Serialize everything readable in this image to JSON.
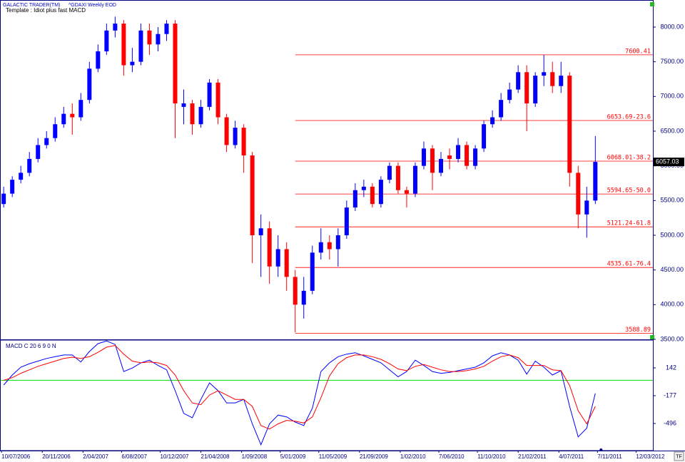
{
  "chart_data": {
    "type": "candlestick",
    "source": "GALACTIC TRADER(TM)",
    "title": "^GDAXI Weekly EOD",
    "subtitle": "Template : Idiot plus fast MACD",
    "corner_label": "TF",
    "up_color": "#0000ff",
    "down_color": "#ff0000",
    "xlim": [
      "2006-07-05",
      "2012-05-06"
    ],
    "xticks": [
      {
        "value": "2006-07-10",
        "label": "10/07/2006"
      },
      {
        "value": "2006-11-20",
        "label": "20/11/2006"
      },
      {
        "value": "2007-04-02",
        "label": "2/04/2007"
      },
      {
        "value": "2007-08-06",
        "label": "6/08/2007"
      },
      {
        "value": "2007-12-10",
        "label": "10/12/2007"
      },
      {
        "value": "2008-04-21",
        "label": "21/04/2008"
      },
      {
        "value": "2008-09-01",
        "label": "1/09/2008"
      },
      {
        "value": "2009-01-05",
        "label": "5/01/2009"
      },
      {
        "value": "2009-05-11",
        "label": "11/05/2009"
      },
      {
        "value": "2009-09-21",
        "label": "21/09/2009"
      },
      {
        "value": "2010-02-01",
        "label": "1/02/2010"
      },
      {
        "value": "2010-06-07",
        "label": "7/06/2010"
      },
      {
        "value": "2010-10-11",
        "label": "11/10/2010"
      },
      {
        "value": "2011-02-21",
        "label": "21/02/2011"
      },
      {
        "value": "2011-07-04",
        "label": "4/07/2011"
      },
      {
        "value": "2011-11-07",
        "label": "7/11/2011"
      },
      {
        "value": "2012-03-12",
        "label": "12/03/2012"
      }
    ],
    "ylim": [
      3500,
      8390
    ],
    "yticks": [
      {
        "value": 3500,
        "label": "3500.00"
      },
      {
        "value": 4000,
        "label": "4000.00"
      },
      {
        "value": 4500,
        "label": "4500.00"
      },
      {
        "value": 5000,
        "label": "5000.00"
      },
      {
        "value": 5500,
        "label": "5500.00"
      },
      {
        "value": 6000,
        "label": "6000.00"
      },
      {
        "value": 6500,
        "label": "6500.00"
      },
      {
        "value": 7000,
        "label": "7000.00"
      },
      {
        "value": 7500,
        "label": "7500.00"
      },
      {
        "value": 8000,
        "label": "8000.00"
      }
    ],
    "fib_color": "#ff0000",
    "fib_levels": [
      7600.41,
      {
        "value": 6653.69,
        "label": "6653.69-23.6"
      },
      {
        "value": 6068.01,
        "label": "6068.01-38.2"
      },
      {
        "value": 5594.65,
        "label": "5594.65-50.0"
      },
      {
        "value": 5121.24,
        "label": "5121.24-61.8"
      },
      {
        "value": 4535.61,
        "label": "4535.61-76.4"
      },
      3588.89
    ],
    "x": [
      "2006-07-17",
      "2006-08-14",
      "2006-09-11",
      "2006-10-09",
      "2006-11-06",
      "2006-12-04",
      "2007-01-01",
      "2007-01-29",
      "2007-02-26",
      "2007-03-26",
      "2007-04-23",
      "2007-05-21",
      "2007-06-18",
      "2007-07-16",
      "2007-08-13",
      "2007-09-10",
      "2007-10-08",
      "2007-11-05",
      "2007-12-03",
      "2007-12-31",
      "2008-01-28",
      "2008-02-25",
      "2008-03-24",
      "2008-04-21",
      "2008-05-19",
      "2008-06-16",
      "2008-07-14",
      "2008-08-11",
      "2008-09-08",
      "2008-10-06",
      "2008-11-03",
      "2008-12-01",
      "2008-12-29",
      "2009-01-26",
      "2009-02-23",
      "2009-03-23",
      "2009-04-20",
      "2009-05-18",
      "2009-06-15",
      "2009-07-13",
      "2009-08-10",
      "2009-09-07",
      "2009-10-05",
      "2009-11-02",
      "2009-11-30",
      "2009-12-28",
      "2010-01-25",
      "2010-02-22",
      "2010-03-22",
      "2010-04-19",
      "2010-05-17",
      "2010-06-14",
      "2010-07-12",
      "2010-08-09",
      "2010-09-06",
      "2010-10-04",
      "2010-11-01",
      "2010-11-29",
      "2010-12-27",
      "2011-01-24",
      "2011-02-21",
      "2011-03-21",
      "2011-04-18",
      "2011-05-16",
      "2011-06-13",
      "2011-07-11",
      "2011-08-08",
      "2011-09-05",
      "2011-10-03",
      "2011-10-31"
    ],
    "open": [
      5450,
      5600,
      5800,
      5900,
      6100,
      6300,
      6400,
      6600,
      6750,
      6700,
      6950,
      7400,
      7650,
      7950,
      8050,
      7450,
      7500,
      7950,
      7750,
      7900,
      8050,
      6850,
      6900,
      6600,
      6850,
      7200,
      6700,
      6300,
      6550,
      6150,
      5000,
      5100,
      4550,
      4800,
      4400,
      4000,
      4200,
      4750,
      4900,
      4800,
      5000,
      5400,
      5650,
      5700,
      5450,
      5800,
      6000,
      5650,
      5600,
      6000,
      6250,
      5900,
      6150,
      6100,
      6300,
      6000,
      6250,
      6600,
      6700,
      6950,
      7100,
      7350,
      6900,
      7300,
      7350,
      7150,
      7300,
      5900,
      5300,
      5500
    ],
    "high": [
      5700,
      5850,
      6000,
      6200,
      6400,
      6500,
      6700,
      6850,
      6900,
      7050,
      7500,
      7750,
      8050,
      8150,
      8100,
      7700,
      8050,
      8050,
      8000,
      8100,
      8100,
      7100,
      6950,
      6950,
      7250,
      7250,
      6750,
      6650,
      6600,
      6200,
      5300,
      5200,
      5000,
      4900,
      4500,
      4400,
      4850,
      5100,
      5000,
      5100,
      5500,
      5750,
      5800,
      5750,
      5850,
      6050,
      6050,
      5700,
      6050,
      6350,
      6300,
      6200,
      6250,
      6400,
      6350,
      6300,
      6650,
      6800,
      7050,
      7200,
      7450,
      7450,
      7350,
      7600,
      7500,
      7500,
      7350,
      6000,
      5700,
      6430
    ],
    "low": [
      5400,
      5550,
      5750,
      5850,
      6050,
      6250,
      6350,
      6550,
      6450,
      6650,
      6900,
      7350,
      7600,
      7850,
      7300,
      7350,
      7450,
      7600,
      7650,
      7800,
      6400,
      6600,
      6450,
      6550,
      6800,
      6600,
      6200,
      6250,
      5900,
      4600,
      4400,
      4300,
      4400,
      4200,
      3600,
      3800,
      4150,
      4650,
      4650,
      4550,
      4950,
      5350,
      5550,
      5400,
      5400,
      5750,
      5600,
      5400,
      5550,
      5950,
      5650,
      5850,
      5950,
      6050,
      5950,
      5950,
      6200,
      6550,
      6650,
      6900,
      7050,
      6500,
      6850,
      7150,
      7050,
      7050,
      5700,
      5100,
      4965,
      5450
    ],
    "close": [
      5600,
      5800,
      5900,
      6100,
      6300,
      6400,
      6600,
      6750,
      6700,
      6950,
      7400,
      7650,
      7950,
      8050,
      7450,
      7500,
      7950,
      7750,
      7900,
      8050,
      6900,
      6900,
      6600,
      6850,
      7200,
      6700,
      6300,
      6550,
      6150,
      5000,
      5100,
      4550,
      4800,
      4400,
      4000,
      4200,
      4750,
      4900,
      4800,
      5000,
      5400,
      5650,
      5700,
      5450,
      5800,
      6000,
      5650,
      5600,
      6000,
      6250,
      5900,
      6100,
      6100,
      6300,
      6000,
      6250,
      6600,
      6700,
      6950,
      7100,
      7350,
      6900,
      7300,
      7350,
      7150,
      7300,
      5900,
      5300,
      5500,
      6057.03
    ],
    "indicator": {
      "type": "line",
      "title": "MACD C 20 6 9 0 N",
      "ylim": [
        -807,
        461
      ],
      "yticks": [
        142,
        -177,
        -496
      ],
      "hline": 0,
      "hline_color": "#00dd00",
      "series": [
        {
          "color": "#0000ff",
          "values": [
            -54,
            60,
            150,
            190,
            220,
            250,
            270,
            290,
            290,
            210,
            330,
            420,
            450,
            410,
            100,
            140,
            200,
            230,
            170,
            120,
            -120,
            -380,
            -430,
            -220,
            -30,
            -120,
            -260,
            -260,
            -220,
            -500,
            -740,
            -500,
            -400,
            -420,
            -480,
            -520,
            -320,
            100,
            200,
            270,
            300,
            315,
            280,
            240,
            200,
            120,
            40,
            100,
            230,
            170,
            100,
            80,
            90,
            110,
            130,
            150,
            200,
            280,
            315,
            290,
            230,
            70,
            220,
            150,
            60,
            110,
            -300,
            -650,
            -550,
            -150
          ]
        },
        {
          "color": "#ff0000",
          "values": [
            0,
            30,
            80,
            120,
            160,
            190,
            220,
            250,
            265,
            250,
            270,
            320,
            380,
            400,
            300,
            220,
            200,
            210,
            200,
            170,
            60,
            -120,
            -260,
            -280,
            -170,
            -120,
            -170,
            -220,
            -220,
            -300,
            -520,
            -560,
            -500,
            -460,
            -470,
            -490,
            -420,
            -200,
            50,
            190,
            260,
            290,
            290,
            270,
            240,
            190,
            130,
            110,
            160,
            180,
            150,
            120,
            100,
            100,
            110,
            130,
            160,
            220,
            270,
            290,
            260,
            170,
            170,
            170,
            120,
            110,
            -60,
            -350,
            -500,
            -300
          ]
        }
      ]
    }
  }
}
